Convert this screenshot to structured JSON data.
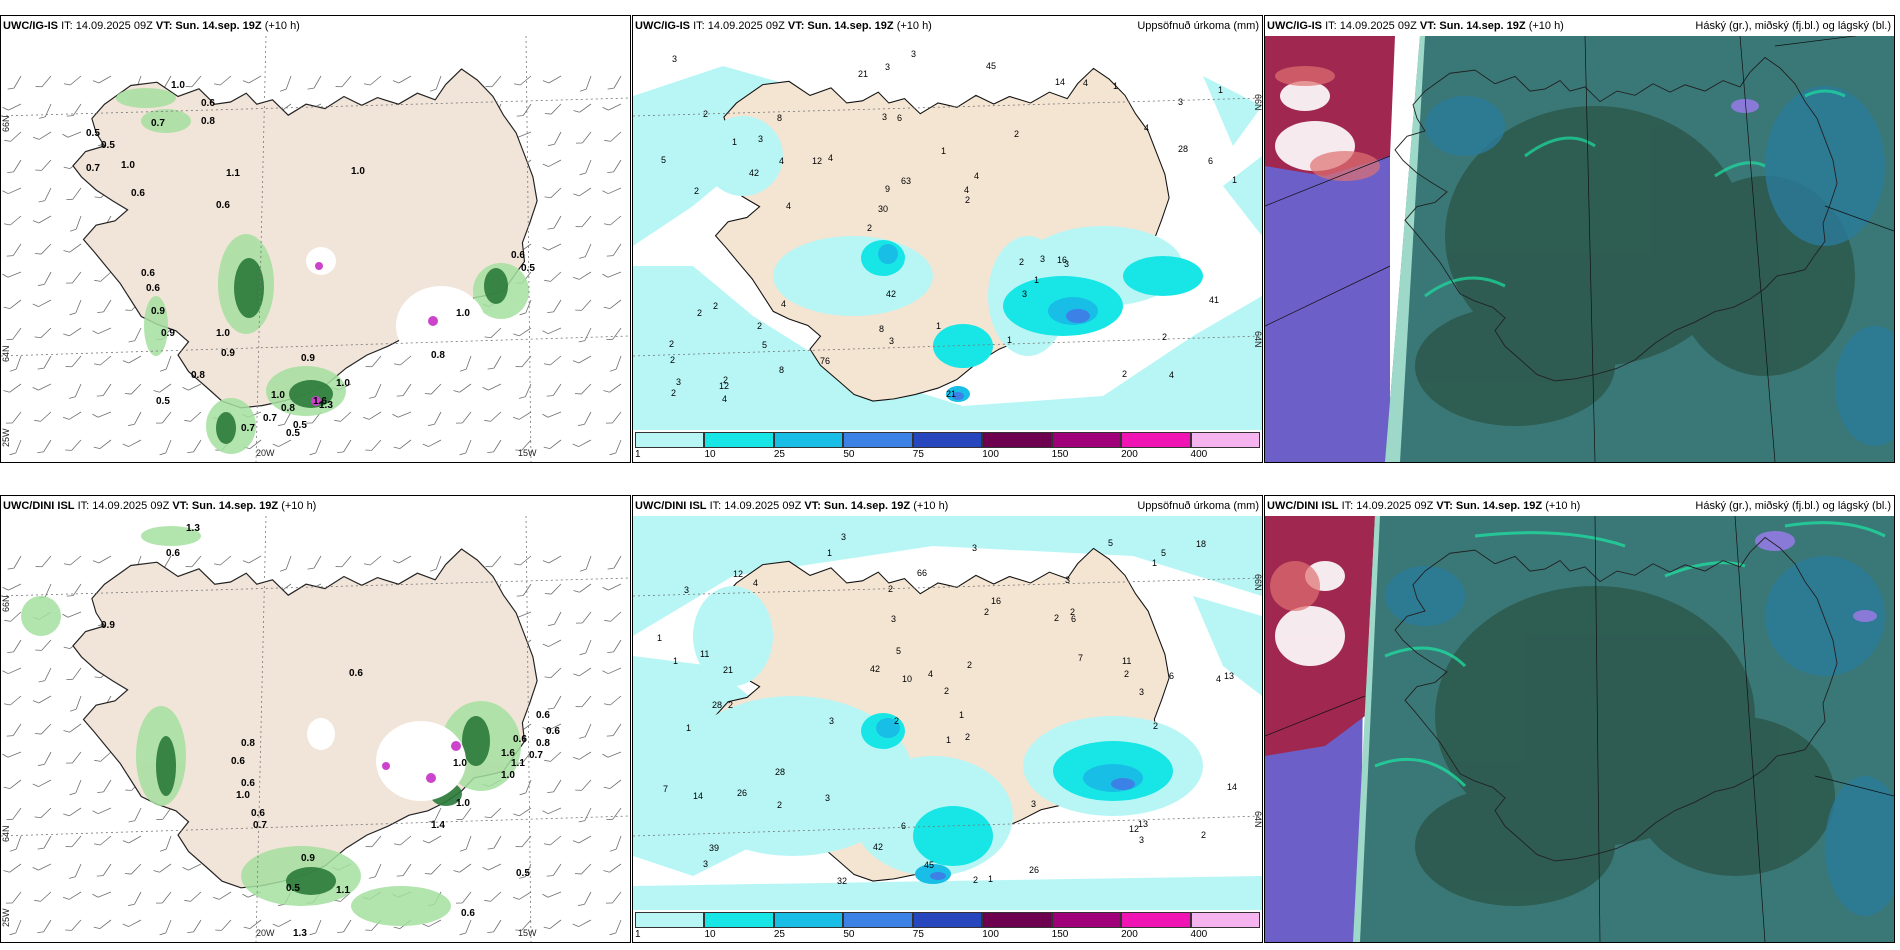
{
  "panels": [
    {
      "model": "UWC/IG-IS",
      "it": "IT: 14.09.2025 09Z",
      "vt_label": "VT:",
      "vt": "Sun. 14.sep. 19Z",
      "lead": "(+10 h)",
      "right": ""
    },
    {
      "model": "UWC/IG-IS",
      "it": "IT: 14.09.2025 09Z",
      "vt_label": "VT:",
      "vt": "Sun. 14.sep. 19Z",
      "lead": "(+10 h)",
      "right": "Uppsöfnuð úrkoma (mm)"
    },
    {
      "model": "UWC/IG-IS",
      "it": "IT: 14.09.2025 09Z",
      "vt_label": "VT:",
      "vt": "Sun. 14.sep. 19Z",
      "lead": "(+10 h)",
      "right": "Háský (gr.), miðský (fj.bl.) og lágský (bl.)"
    },
    {
      "model": "UWC/DINI ISL",
      "it": "IT: 14.09.2025 09Z",
      "vt_label": "VT:",
      "vt": "Sun. 14.sep. 19Z",
      "lead": "(+10 h)",
      "right": ""
    },
    {
      "model": "UWC/DINI ISL",
      "it": "IT: 14.09.2025 09Z",
      "vt_label": "VT:",
      "vt": "Sun. 14.sep. 19Z",
      "lead": "(+10 h)",
      "right": "Uppsöfnuð úrkoma (mm)"
    },
    {
      "model": "UWC/DINI ISL",
      "it": "IT: 14.09.2025 09Z",
      "vt_label": "VT:",
      "vt": "Sun. 14.sep. 19Z",
      "lead": "(+10 h)",
      "right": "Háský (gr.), miðský (fj.bl.) og lágský (bl.)"
    }
  ],
  "axis_labels": {
    "lat66": "66N",
    "lat64": "64N",
    "lon25": "25W",
    "lon20": "20W",
    "lon15": "15W"
  },
  "colorbar": {
    "ticks": [
      "1",
      "10",
      "25",
      "50",
      "75",
      "100",
      "150",
      "200",
      "400"
    ],
    "colors": [
      "#b8f6f6",
      "#18e6e6",
      "#18bee6",
      "#3c82e6",
      "#2846be",
      "#6e0050",
      "#a00078",
      "#f014b4",
      "#f5b4f0"
    ]
  },
  "wind_values_top": [
    "1.0",
    "0.7",
    "0.6",
    "0.8",
    "0.5",
    "0.5",
    "0.7",
    "1.0",
    "0.6",
    "1.1",
    "0.6",
    "1.0",
    "0.6",
    "0.6",
    "0.9",
    "0.9",
    "1.0",
    "0.9",
    "0.8",
    "0.5",
    "0.7",
    "0.5",
    "1.0",
    "1.0",
    "0.6",
    "0.5",
    "1.0",
    "0.8",
    "1.3",
    "0.9",
    "1.6",
    "0.8",
    "0.5",
    "0.7"
  ],
  "wind_values_bottom": [
    "1.3",
    "0.6",
    "0.9",
    "0.8",
    "0.6",
    "0.6",
    "1.0",
    "0.6",
    "0.7",
    "1.1",
    "1.0",
    "0.5",
    "0.9",
    "0.6",
    "1.0",
    "1.4",
    "1.1",
    "1.3",
    "0.6",
    "0.5",
    "0.6",
    "0.6",
    "0.6",
    "0.8",
    "0.7",
    "1.6",
    "1.0"
  ],
  "precip_values_top": [
    "4",
    "2",
    "3",
    "2",
    "2",
    "2",
    "3",
    "1",
    "2",
    "4",
    "2",
    "5",
    "6",
    "4",
    "3",
    "2",
    "3",
    "1",
    "2",
    "28",
    "30",
    "8",
    "9",
    "8",
    "14",
    "4",
    "2",
    "2",
    "16",
    "21",
    "12",
    "42",
    "3",
    "8",
    "6",
    "4",
    "3",
    "3",
    "2",
    "2",
    "4",
    "1",
    "1",
    "1",
    "2",
    "4",
    "2",
    "1",
    "1",
    "3",
    "4",
    "5",
    "3",
    "4",
    "12",
    "45",
    "21",
    "63",
    "41",
    "42",
    "76",
    "3",
    "4",
    "2",
    "3",
    "1"
  ],
  "precip_values_bottom": [
    "3",
    "3",
    "4",
    "2",
    "2",
    "2",
    "3",
    "2",
    "1",
    "2",
    "2",
    "3",
    "1",
    "3",
    "2",
    "1",
    "6",
    "5",
    "7",
    "28",
    "21",
    "28",
    "13",
    "6",
    "7",
    "11",
    "10",
    "2",
    "13",
    "14",
    "12",
    "16",
    "26",
    "42",
    "3",
    "14",
    "11",
    "42",
    "18",
    "66",
    "39",
    "32",
    "26",
    "12",
    "45",
    "6",
    "3",
    "2",
    "1",
    "1",
    "2",
    "3",
    "2",
    "1",
    "3",
    "2",
    "5",
    "4",
    "5",
    "3",
    "2",
    "2",
    "4",
    "3",
    "1",
    "1"
  ]
}
